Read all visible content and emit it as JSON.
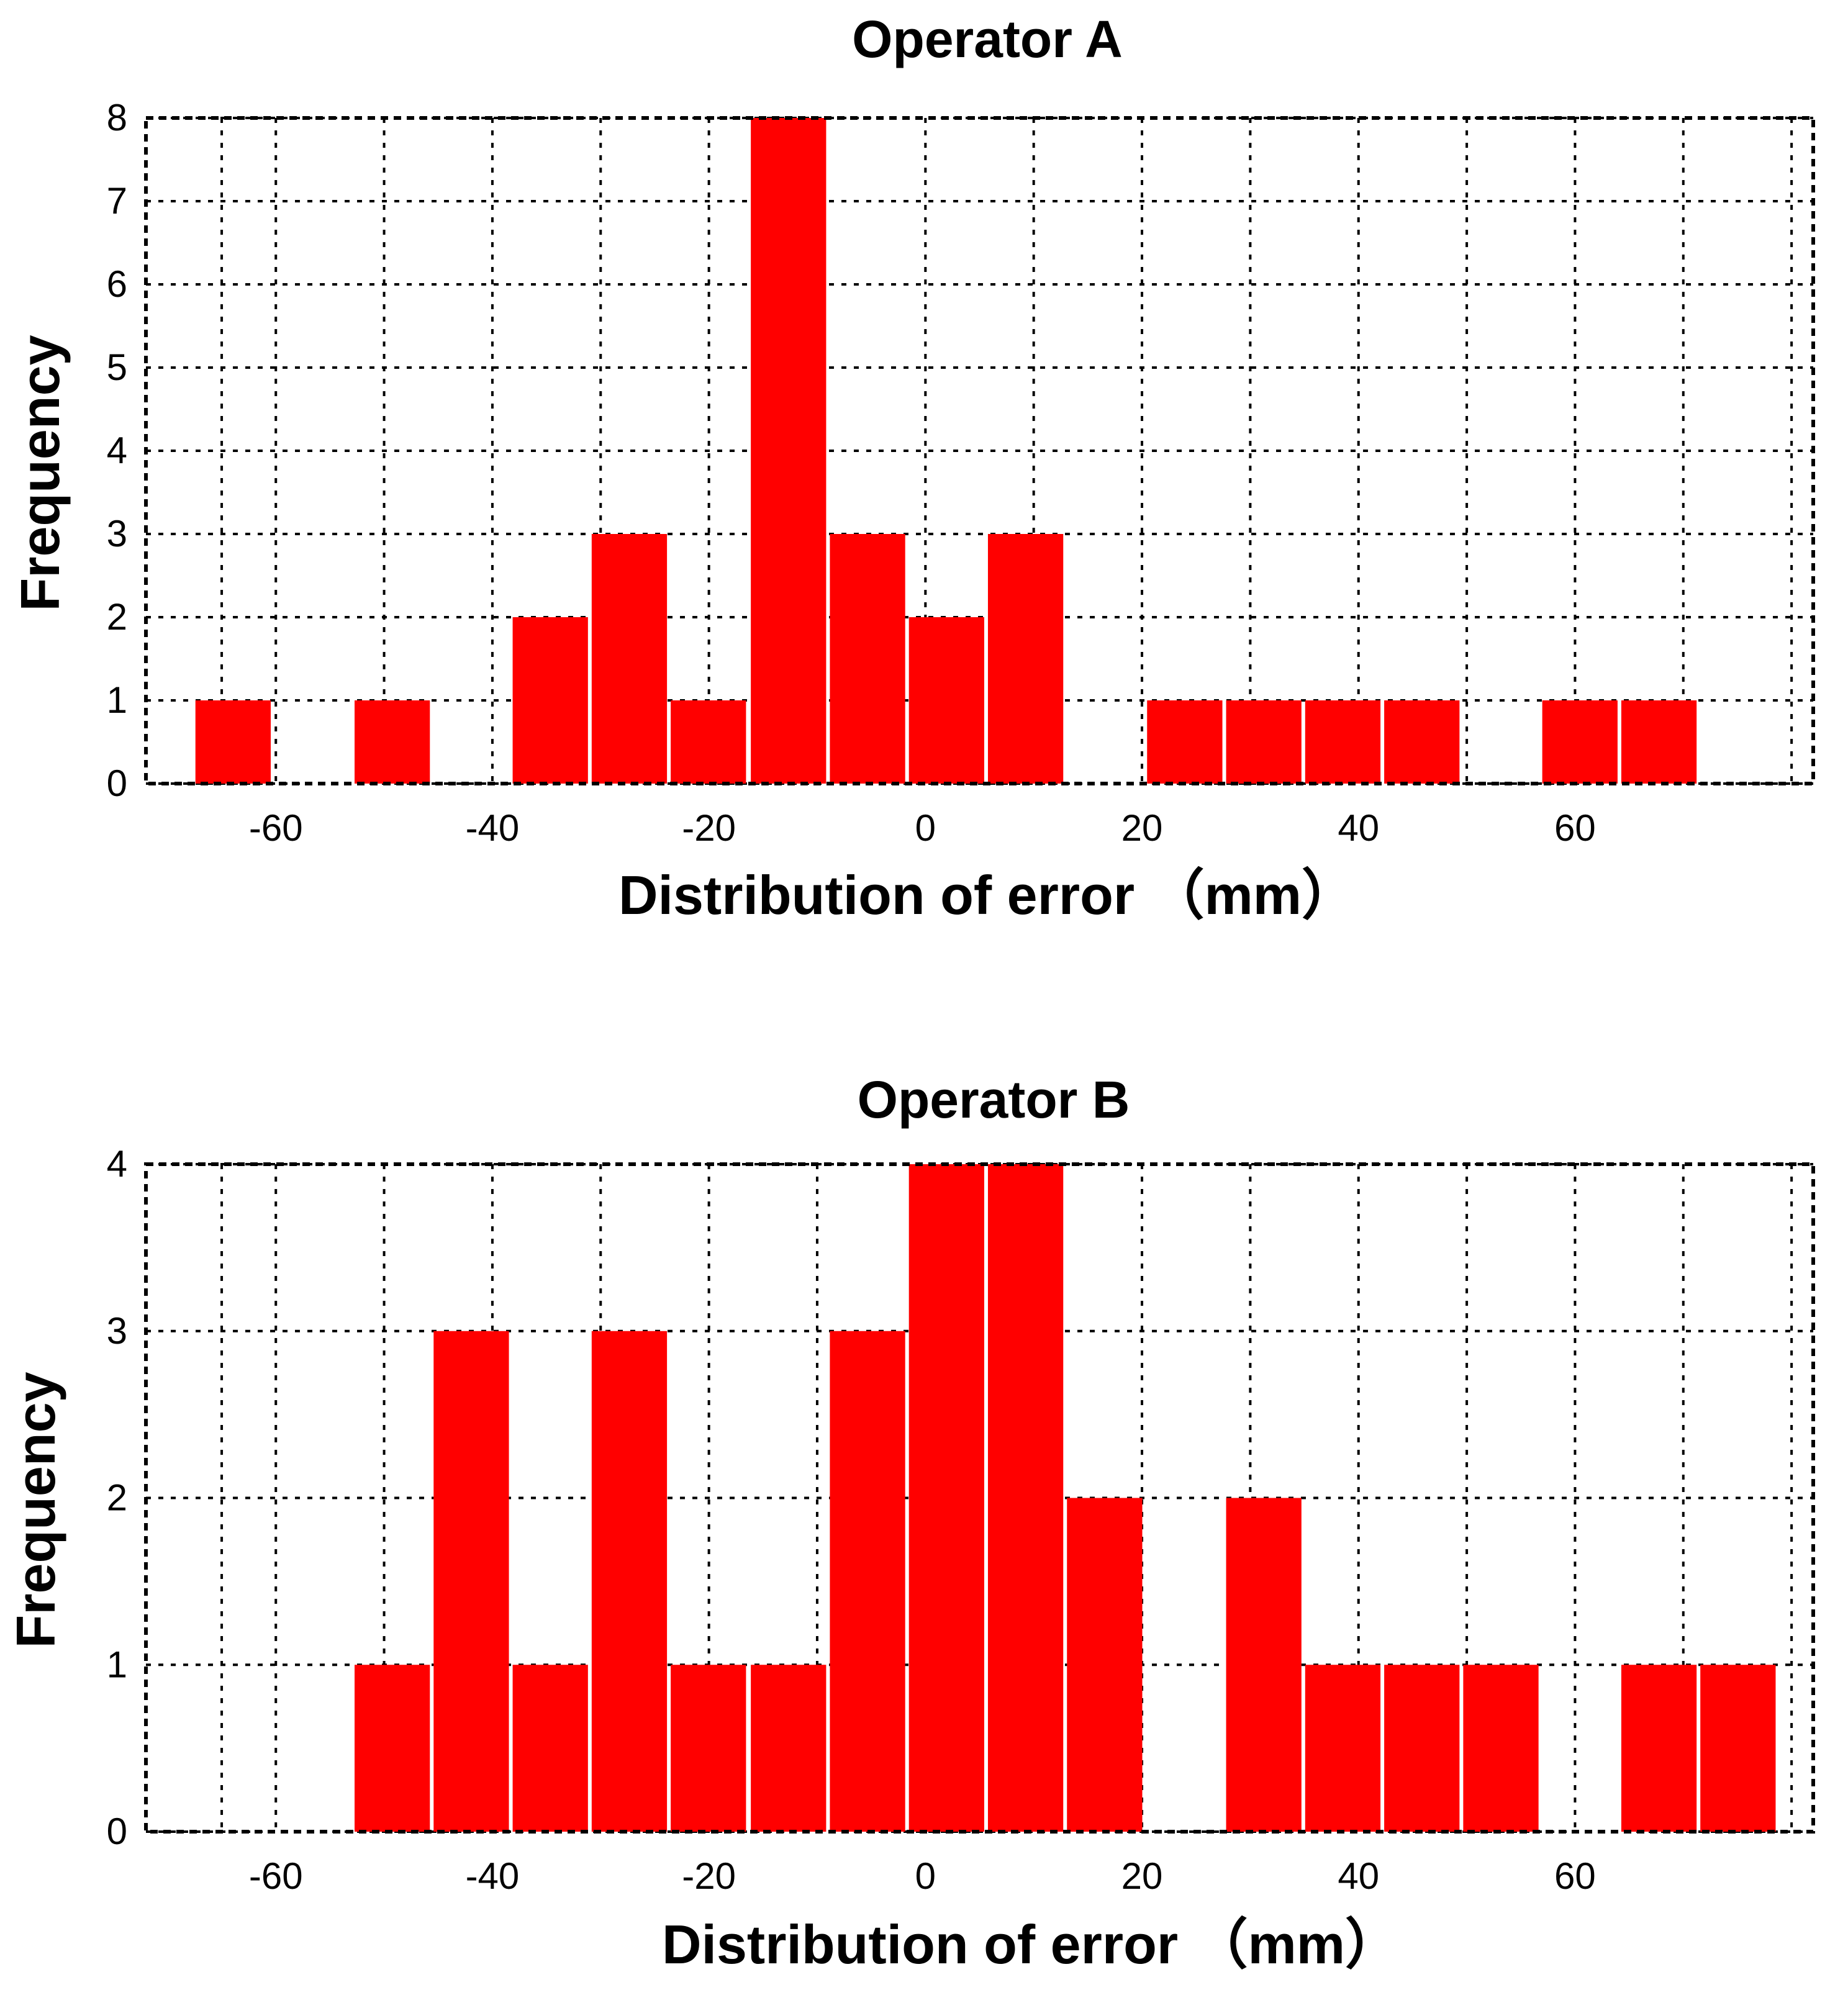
{
  "chart_data": [
    {
      "type": "bar",
      "title": "Operator A",
      "xlabel": "Distribution of error （mm）",
      "ylabel": "Frequency",
      "x_ticks": [
        "-60",
        "-40",
        "-20",
        "0",
        "20",
        "40",
        "60"
      ],
      "y_ticks": [
        "0",
        "1",
        "2",
        "3",
        "4",
        "5",
        "6",
        "7",
        "8"
      ],
      "xlim": [
        -72,
        82
      ],
      "ylim": [
        0,
        8
      ],
      "bin_width": 7.3,
      "bin_starts": [
        -67.6,
        -52.9,
        -38.3,
        -31.0,
        -23.7,
        -16.3,
        -9.0,
        -1.7,
        5.6,
        20.3,
        27.6,
        34.9,
        42.2,
        56.8,
        64.1
      ],
      "values": [
        1,
        1,
        2,
        3,
        1,
        8,
        3,
        2,
        3,
        1,
        1,
        1,
        1,
        1,
        1
      ],
      "bar_color": "#ff0000",
      "grid": true
    },
    {
      "type": "bar",
      "title": "Operator B",
      "xlabel": "Distribution of error （mm）",
      "ylabel": "Frequency",
      "x_ticks": [
        "-60",
        "-40",
        "-20",
        "0",
        "20",
        "40",
        "60"
      ],
      "y_ticks": [
        "0",
        "1",
        "2",
        "3",
        "4"
      ],
      "xlim": [
        -72,
        82
      ],
      "ylim": [
        0,
        4
      ],
      "bin_width": 7.3,
      "bin_starts": [
        -52.9,
        -45.6,
        -38.3,
        -31.0,
        -23.7,
        -16.3,
        -9.0,
        -1.7,
        5.6,
        12.9,
        27.6,
        34.9,
        42.2,
        49.5,
        64.1,
        71.4
      ],
      "values": [
        1,
        3,
        1,
        3,
        1,
        1,
        3,
        4,
        4,
        2,
        2,
        1,
        1,
        1,
        1,
        1
      ],
      "bar_color": "#ff0000",
      "grid": true
    }
  ]
}
